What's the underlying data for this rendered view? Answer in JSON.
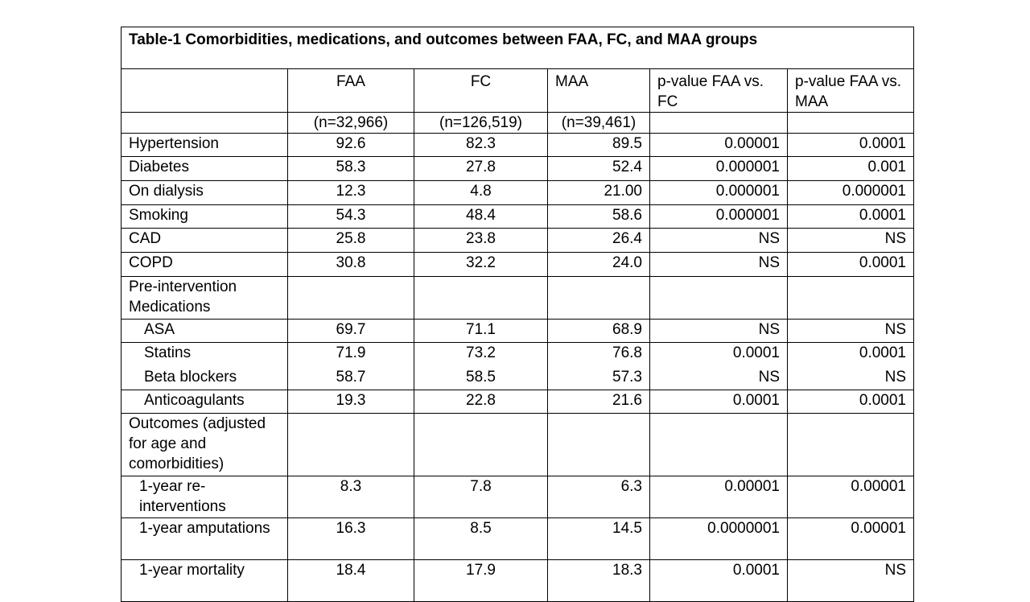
{
  "title": "Table-1 Comorbidities, medications, and outcomes between FAA, FC, and MAA groups",
  "columns": [
    "",
    "FAA",
    "FC",
    "MAA",
    "p-value FAA vs. FC",
    "p-value FAA vs. MAA"
  ],
  "n_row": [
    "",
    "(n=32,966)",
    "(n=126,519)",
    "(n=39,461)",
    "",
    ""
  ],
  "rows": [
    {
      "label": "Hypertension",
      "values": [
        "92.6",
        "82.3",
        "89.5",
        "0.00001",
        "0.0001"
      ]
    },
    {
      "label": "Diabetes",
      "values": [
        "58.3",
        "27.8",
        "52.4",
        "0.000001",
        "0.001"
      ]
    },
    {
      "label": "On dialysis",
      "values": [
        "12.3",
        "4.8",
        "21.00",
        "0.000001",
        "0.000001"
      ]
    },
    {
      "label": "Smoking",
      "values": [
        "54.3",
        "48.4",
        "58.6",
        "0.000001",
        "0.0001"
      ]
    },
    {
      "label": "CAD",
      "values": [
        "25.8",
        "23.8",
        "26.4",
        "NS",
        "NS"
      ]
    },
    {
      "label": "COPD",
      "values": [
        "30.8",
        "32.2",
        "24.0",
        "NS",
        "0.0001"
      ]
    },
    {
      "label": "Pre-intervention Medications",
      "values": [
        "",
        "",
        "",
        "",
        ""
      ],
      "section": true
    },
    {
      "label": "ASA",
      "values": [
        "69.7",
        "71.1",
        "68.9",
        "NS",
        "NS"
      ],
      "indent": 1
    },
    {
      "label": "Statins",
      "values": [
        "71.9",
        "73.2",
        "76.8",
        "0.0001",
        "0.0001"
      ],
      "indent": 1
    },
    {
      "label": "Beta blockers",
      "values": [
        "58.7",
        "58.5",
        "57.3",
        "NS",
        "NS"
      ],
      "indent": 1
    },
    {
      "label": "Anticoagulants",
      "values": [
        "19.3",
        "22.8",
        "21.6",
        "0.0001",
        "0.0001"
      ],
      "indent": 1
    },
    {
      "label": "Outcomes (adjusted for age and comorbidities)",
      "values": [
        "",
        "",
        "",
        "",
        ""
      ],
      "section": true
    },
    {
      "label": "1-year re-interventions",
      "values": [
        "8.3",
        "7.8",
        "6.3",
        "0.00001",
        "0.00001"
      ],
      "indent": 2
    },
    {
      "label": "1-year amputations",
      "values": [
        "16.3",
        "8.5",
        "14.5",
        "0.0000001",
        "0.00001"
      ],
      "indent": 2
    },
    {
      "label": "1-year mortality",
      "values": [
        "18.4",
        "17.9",
        "18.3",
        "0.0001",
        "NS"
      ],
      "indent": 2
    }
  ]
}
